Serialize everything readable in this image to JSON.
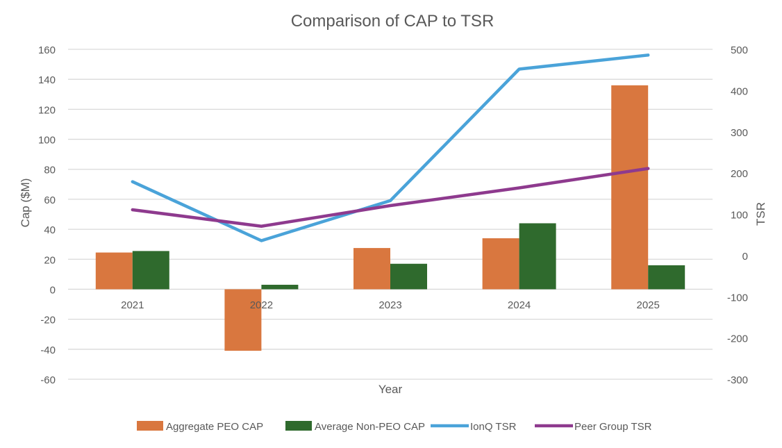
{
  "chart_data": {
    "type": "bar",
    "title": "Comparison of CAP to TSR",
    "xlabel": "Year",
    "ylabel": "Cap ($M)",
    "y2label": "TSR",
    "categories": [
      "2021",
      "2022",
      "2023",
      "2024",
      "2025"
    ],
    "ylim": [
      -60,
      160
    ],
    "y2lim": [
      -300,
      500
    ],
    "yticks": [
      -60,
      -40,
      -20,
      0,
      20,
      40,
      60,
      80,
      100,
      120,
      140,
      160
    ],
    "y2ticks": [
      -300,
      -200,
      -100,
      0,
      100,
      200,
      300,
      400,
      500
    ],
    "grid": true,
    "legend_position": "bottom",
    "series": [
      {
        "name": "Aggregate PEO CAP",
        "type": "bar",
        "axis": "left",
        "color": "#D9773F",
        "values": [
          24.5,
          -41,
          27.5,
          34,
          136
        ]
      },
      {
        "name": "Average Non-PEO CAP",
        "type": "bar",
        "axis": "left",
        "color": "#2F6A2D",
        "values": [
          25.5,
          3,
          17,
          44,
          16
        ]
      },
      {
        "name": "IonQ TSR",
        "type": "line",
        "axis": "right",
        "color": "#4AA3D9",
        "values": [
          179,
          36,
          133,
          452,
          486
        ]
      },
      {
        "name": "Peer Group TSR",
        "type": "line",
        "axis": "right",
        "color": "#8E3A8E",
        "values": [
          111,
          71,
          121,
          164,
          211
        ]
      }
    ]
  }
}
